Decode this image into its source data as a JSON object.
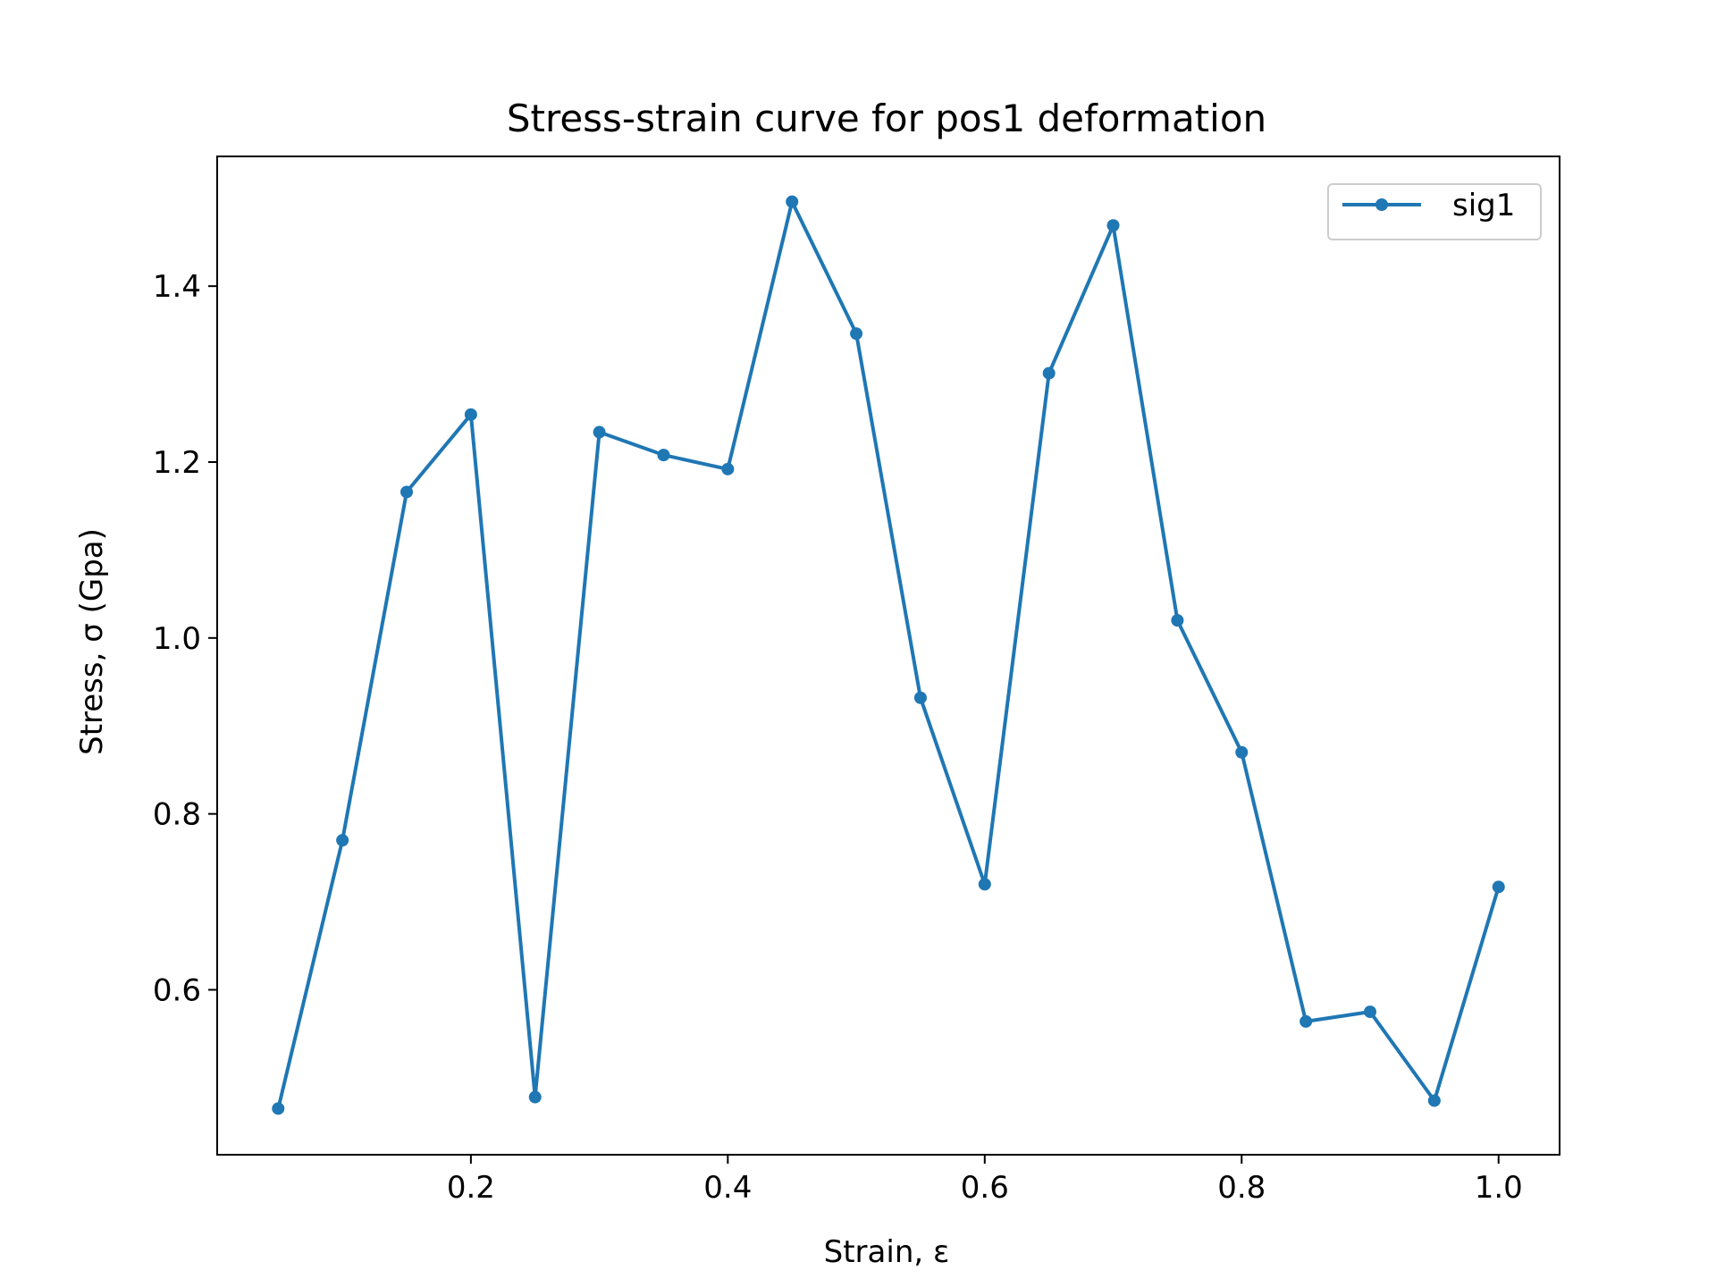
{
  "chart_data": {
    "type": "line",
    "title": "Stress-strain curve for pos1 deformation",
    "xlabel": "Strain, ε",
    "ylabel": "Stress, σ (Gpa)",
    "xlim": [
      0.0025,
      1.0475
    ],
    "ylim": [
      0.4125,
      1.5475
    ],
    "xticks": [
      0.2,
      0.4,
      0.6,
      0.8,
      1.0
    ],
    "xtick_labels": [
      "0.2",
      "0.4",
      "0.6",
      "0.8",
      "1.0"
    ],
    "yticks": [
      0.6,
      0.8,
      1.0,
      1.2,
      1.4
    ],
    "ytick_labels": [
      "0.6",
      "0.8",
      "1.0",
      "1.2",
      "1.4"
    ],
    "grid": false,
    "legend_position": "top-right",
    "x": [
      0.05,
      0.1,
      0.15,
      0.2,
      0.25,
      0.3,
      0.35,
      0.4,
      0.45,
      0.5,
      0.55,
      0.6,
      0.65,
      0.7,
      0.75,
      0.8,
      0.85,
      0.9,
      0.95,
      1.0
    ],
    "series": [
      {
        "name": "sig1",
        "color": "#1f77b4",
        "marker": "circle",
        "values": [
          0.465,
          0.77,
          1.166,
          1.254,
          0.478,
          1.234,
          1.208,
          1.192,
          1.496,
          1.346,
          0.932,
          0.72,
          1.301,
          1.469,
          1.02,
          0.87,
          0.564,
          0.575,
          0.474,
          0.717
        ]
      }
    ]
  }
}
